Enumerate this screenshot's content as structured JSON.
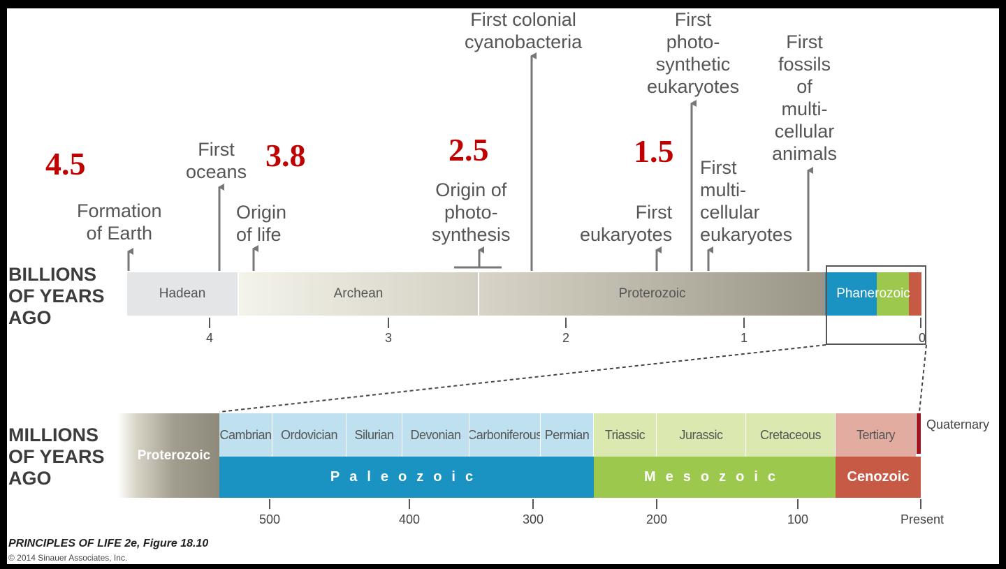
{
  "big_numbers": {
    "n45": "4.5",
    "n38": "3.8",
    "n25": "2.5",
    "n15": "1.5"
  },
  "events": {
    "formation_earth": "Formation\nof Earth",
    "first_oceans": "First\noceans",
    "origin_life": "Origin\nof life",
    "origin_photosynthesis": "Origin of\nphoto-\nsynthesis",
    "colonial_cyanobacteria": "First colonial\ncyanobacteria",
    "first_eukaryotes": "First\neukaryotes",
    "photosynthetic_eukaryotes": "First\nphoto-\nsynthetic\neukaryotes",
    "multicellular_eukaryotes": "First\nmulti-\ncellular\neukaryotes",
    "multicellular_animals": "First\nfossils\nof\nmulti-\ncellular\nanimals"
  },
  "top_axis": {
    "title": "BILLIONS\nOF YEARS\nAGO",
    "eons": {
      "hadean": "Hadean",
      "archean": "Archean",
      "proterozoic": "Proterozoic",
      "phanerozoic": "Phanerozoic"
    },
    "ticks": [
      "4",
      "3",
      "2",
      "1",
      "0"
    ]
  },
  "bottom_axis": {
    "title": "MILLIONS\nOF YEARS\nAGO",
    "proterozoic": "Proterozoic",
    "periods": {
      "cambrian": "Cambrian",
      "ordovician": "Ordovician",
      "silurian": "Silurian",
      "devonian": "Devonian",
      "carboniferous": "Carboniferous",
      "permian": "Permian",
      "triassic": "Triassic",
      "jurassic": "Jurassic",
      "cretaceous": "Cretaceous",
      "tertiary": "Tertiary",
      "quaternary": "Quaternary"
    },
    "eras": {
      "paleozoic": "Paleozoic",
      "mesozoic": "Mesozoic",
      "cenozoic": "Cenozoic"
    },
    "ticks": [
      "500",
      "400",
      "300",
      "200",
      "100",
      "Present"
    ]
  },
  "footer": {
    "figure": "PRINCIPLES OF LIFE 2e, Figure 18.10",
    "copyright": "© 2014 Sinauer Associates, Inc."
  },
  "colors": {
    "accent_red": "#c00000",
    "paleozoic": "#1a93c3",
    "paleozoic_light": "#bfe0ee",
    "mesozoic": "#9cc84e",
    "mesozoic_light": "#dbe9b0",
    "cenozoic": "#c75a45",
    "cenozoic_light": "#e3aca1",
    "hadean": "#e5e6e7",
    "proterozoic": "#a8a496"
  }
}
